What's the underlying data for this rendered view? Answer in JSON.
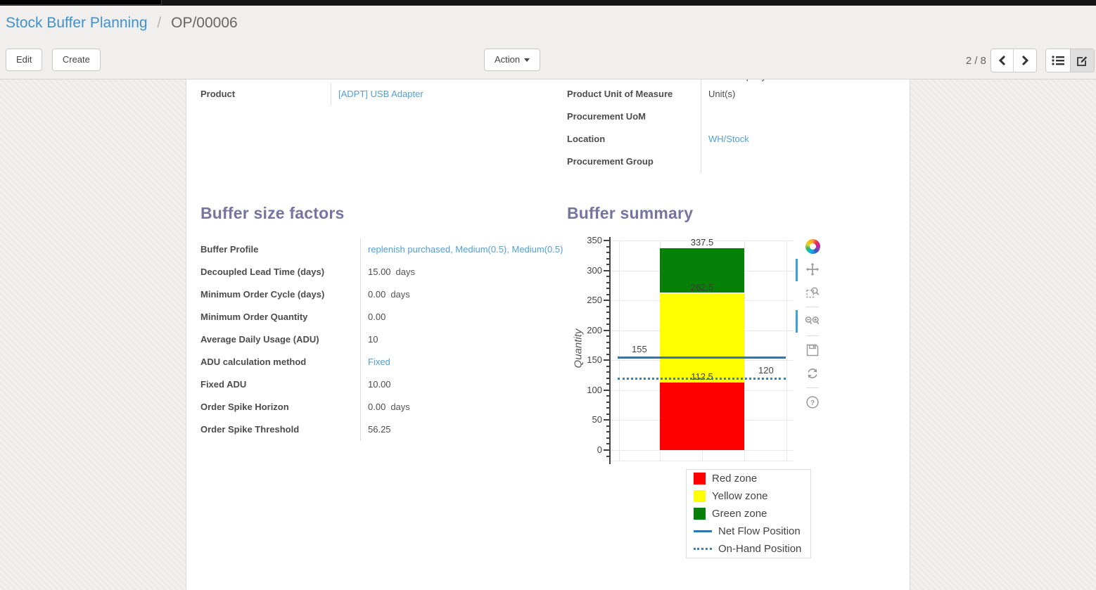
{
  "breadcrumb": {
    "parent": "Stock Buffer Planning",
    "separator": "/",
    "current": "OP/00006"
  },
  "control_panel": {
    "edit_label": "Edit",
    "create_label": "Create",
    "action_label": "Action",
    "pager": "2 / 8",
    "view_switcher": [
      "list-view",
      "form-view-active"
    ]
  },
  "form": {
    "top_left_fields": [
      {
        "label": "Product",
        "value": "[ADPT] USB Adapter",
        "link": true
      }
    ],
    "top_right_partial_value": "YourCompany",
    "top_right_fields": [
      {
        "label": "Product Unit of Measure",
        "value": "Unit(s)"
      },
      {
        "label": "Procurement UoM",
        "value": ""
      },
      {
        "label": "Location",
        "value": "WH/Stock",
        "link": true
      },
      {
        "label": "Procurement Group",
        "value": ""
      }
    ],
    "buffer_factors": {
      "title": "Buffer size factors",
      "fields": [
        {
          "label": "Buffer Profile",
          "value": "replenish purchased, Medium(0.5), Medium(0.5)",
          "link": true
        },
        {
          "label": "Decoupled Lead Time (days)",
          "value": "15.00",
          "unit": "days"
        },
        {
          "label": "Minimum Order Cycle (days)",
          "value": "0.00",
          "unit": "days"
        },
        {
          "label": "Minimum Order Quantity",
          "value": "0.00"
        },
        {
          "label": "Average Daily Usage (ADU)",
          "value": "10"
        },
        {
          "label": "ADU calculation method",
          "value": "Fixed",
          "link": true
        },
        {
          "label": "Fixed ADU",
          "value": "10.00"
        },
        {
          "label": "Order Spike Horizon",
          "value": "0.00",
          "unit": "days"
        },
        {
          "label": "Order Spike Threshold",
          "value": "56.25"
        }
      ]
    },
    "buffer_summary_title": "Buffer summary"
  },
  "chart_data": {
    "type": "bar",
    "title": "Buffer summary",
    "xlabel": "",
    "ylabel": "Quantity",
    "ylim": [
      0,
      350
    ],
    "categories": [
      ""
    ],
    "grid": true,
    "y_major_ticks": [
      0,
      50,
      100,
      150,
      200,
      250,
      300,
      350
    ],
    "y_minor_step": 10,
    "stacked_zones": [
      {
        "name": "Red zone",
        "from": 0,
        "to": 112.5,
        "color": "#ff0000",
        "boundary_label": "112.5"
      },
      {
        "name": "Yellow zone",
        "from": 112.5,
        "to": 262.5,
        "color": "#ffff00",
        "boundary_label": "262.5"
      },
      {
        "name": "Green zone",
        "from": 262.5,
        "to": 337.5,
        "color": "#068006",
        "boundary_label": "337.5"
      }
    ],
    "reference_lines": [
      {
        "name": "Net Flow Position",
        "value": 155,
        "style": "solid",
        "color": "#2878b8",
        "label": "155",
        "label_side": "left"
      },
      {
        "name": "On-Hand Position",
        "value": 120,
        "style": "dotted",
        "color": "#2f83c2",
        "label": "120",
        "label_side": "right"
      }
    ],
    "legend_position": "bottom-right",
    "legend": [
      {
        "label": "Red zone",
        "swatch": "square",
        "color": "#ff0000"
      },
      {
        "label": "Yellow zone",
        "swatch": "square",
        "color": "#ffff00"
      },
      {
        "label": "Green zone",
        "swatch": "square",
        "color": "#068006"
      },
      {
        "label": "Net Flow Position",
        "swatch": "line",
        "color": "#2878b8"
      },
      {
        "label": "On-Hand Position",
        "swatch": "dotted",
        "color": "#2f83c2"
      }
    ],
    "modebar_icons": [
      "plotly-logo",
      "pan",
      "box-zoom",
      "zoom-in-out",
      "save",
      "reset-axes",
      "help"
    ]
  }
}
